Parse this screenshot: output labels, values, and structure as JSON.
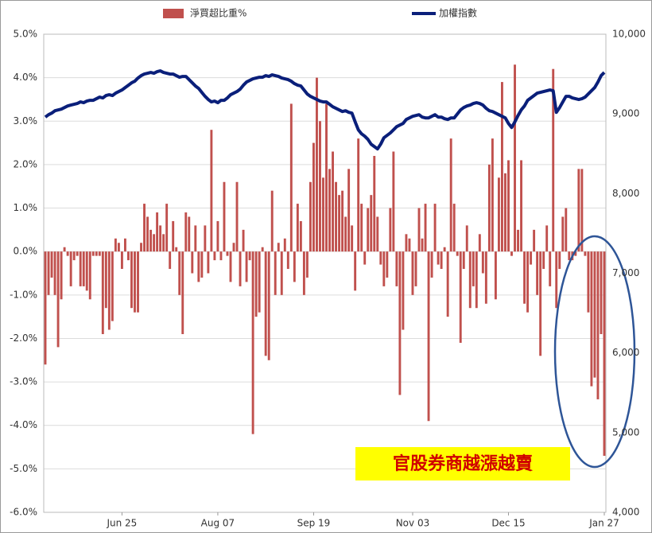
{
  "chart_data": {
    "type": "bar",
    "categories": [
      null,
      null,
      null,
      null,
      null,
      null,
      null,
      null,
      null,
      null,
      null,
      null,
      null,
      null,
      null,
      null,
      null,
      null,
      null,
      null,
      null,
      null,
      null,
      null,
      "Jun 25",
      null,
      null,
      null,
      null,
      null,
      null,
      null,
      null,
      null,
      null,
      null,
      null,
      null,
      null,
      null,
      null,
      null,
      null,
      null,
      null,
      null,
      null,
      null,
      null,
      null,
      null,
      null,
      null,
      null,
      "Aug 07",
      null,
      null,
      null,
      null,
      null,
      null,
      null,
      null,
      null,
      null,
      null,
      null,
      null,
      null,
      null,
      null,
      null,
      null,
      null,
      null,
      null,
      null,
      null,
      null,
      null,
      null,
      null,
      null,
      null,
      "Sep 19",
      null,
      null,
      null,
      null,
      null,
      null,
      null,
      null,
      null,
      null,
      null,
      null,
      null,
      null,
      null,
      null,
      null,
      null,
      null,
      null,
      null,
      null,
      null,
      null,
      null,
      null,
      null,
      null,
      null,
      null,
      "Nov 03",
      null,
      null,
      null,
      null,
      null,
      null,
      null,
      null,
      null,
      null,
      null,
      null,
      null,
      null,
      null,
      null,
      null,
      null,
      null,
      null,
      null,
      null,
      null,
      null,
      null,
      null,
      null,
      null,
      null,
      "Dec 15",
      null,
      null,
      null,
      null,
      null,
      null,
      null,
      null,
      null,
      null,
      null,
      null,
      null,
      null,
      null,
      null,
      null,
      null,
      null,
      null,
      null,
      null,
      null,
      null,
      null,
      null,
      null,
      null,
      null,
      "Jan 27"
    ],
    "series": [
      {
        "name": "淨買超比重%",
        "color": "#c0504d",
        "type": "bar",
        "values": [
          -2.6,
          -1.0,
          -0.6,
          -1.0,
          -2.2,
          -1.1,
          0.1,
          -0.1,
          -0.8,
          -0.2,
          -0.1,
          -0.8,
          -0.8,
          -0.9,
          -1.1,
          -0.1,
          -0.1,
          -0.1,
          -1.9,
          -1.3,
          -1.8,
          -1.6,
          0.3,
          0.2,
          -0.4,
          0.3,
          -0.2,
          -1.3,
          -1.4,
          -1.4,
          0.2,
          1.1,
          0.8,
          0.5,
          0.4,
          0.9,
          0.6,
          0.4,
          1.1,
          -0.4,
          0.7,
          0.1,
          -1.0,
          -1.9,
          0.9,
          0.8,
          -0.5,
          0.6,
          -0.7,
          -0.6,
          0.6,
          -0.5,
          2.8,
          -0.2,
          0.7,
          -0.2,
          1.6,
          -0.1,
          -0.7,
          0.2,
          1.6,
          -0.8,
          0.5,
          -0.7,
          -0.2,
          -4.2,
          -1.5,
          -1.4,
          0.1,
          -2.4,
          -2.5,
          1.4,
          -1.0,
          0.2,
          -1.0,
          0.3,
          -0.4,
          3.4,
          -0.7,
          1.1,
          0.7,
          -1.0,
          -0.6,
          1.6,
          2.5,
          4.0,
          3.0,
          1.7,
          3.4,
          1.9,
          2.3,
          1.6,
          1.3,
          1.4,
          0.8,
          1.9,
          0.6,
          -0.9,
          2.6,
          1.1,
          -0.3,
          1.0,
          1.3,
          2.2,
          0.8,
          -0.3,
          -0.8,
          -0.6,
          1.0,
          2.3,
          -0.8,
          -3.3,
          -1.8,
          0.4,
          0.3,
          -1.0,
          -0.8,
          1.0,
          0.3,
          1.1,
          -3.9,
          -0.6,
          1.1,
          -0.3,
          -0.4,
          0.1,
          -1.5,
          2.6,
          1.1,
          -0.1,
          -2.1,
          -0.4,
          0.6,
          -1.3,
          -0.8,
          -1.3,
          0.4,
          -0.5,
          -1.2,
          2.0,
          2.6,
          -1.1,
          1.7,
          3.9,
          1.8,
          2.1,
          -0.1,
          4.3,
          0.5,
          2.1,
          -1.2,
          -1.4,
          -0.3,
          0.5,
          -1.0,
          -2.4,
          -0.4,
          0.6,
          -0.8,
          4.2,
          -1.3,
          -0.4,
          0.8,
          1.0,
          -0.2,
          -0.2,
          -0.1,
          1.9,
          1.9,
          -0.1,
          -1.4,
          -3.1,
          -2.9,
          -3.4,
          -1.9,
          -4.7
        ]
      },
      {
        "name": "加權指數",
        "color": "#0a1f7a",
        "type": "line",
        "axis": "y2",
        "values": [
          8960,
          8990,
          9010,
          9040,
          9050,
          9060,
          9080,
          9100,
          9110,
          9120,
          9130,
          9150,
          9140,
          9160,
          9170,
          9170,
          9190,
          9210,
          9200,
          9230,
          9240,
          9230,
          9260,
          9280,
          9300,
          9330,
          9360,
          9390,
          9410,
          9450,
          9480,
          9500,
          9510,
          9520,
          9510,
          9530,
          9540,
          9520,
          9510,
          9500,
          9500,
          9480,
          9460,
          9470,
          9470,
          9430,
          9390,
          9350,
          9320,
          9270,
          9220,
          9180,
          9150,
          9160,
          9140,
          9170,
          9170,
          9200,
          9240,
          9260,
          9280,
          9310,
          9360,
          9400,
          9420,
          9440,
          9450,
          9460,
          9460,
          9480,
          9470,
          9490,
          9480,
          9470,
          9450,
          9440,
          9430,
          9410,
          9380,
          9360,
          9350,
          9300,
          9250,
          9220,
          9200,
          9180,
          9160,
          9150,
          9150,
          9120,
          9090,
          9070,
          9050,
          9030,
          9040,
          9020,
          9010,
          8900,
          8800,
          8750,
          8720,
          8680,
          8620,
          8590,
          8560,
          8620,
          8700,
          8730,
          8760,
          8800,
          8840,
          8860,
          8880,
          8930,
          8950,
          8970,
          8980,
          8990,
          8960,
          8950,
          8950,
          8970,
          8990,
          8960,
          8960,
          8940,
          8930,
          8950,
          8950,
          9000,
          9050,
          9080,
          9100,
          9110,
          9130,
          9140,
          9130,
          9110,
          9070,
          9040,
          9030,
          9010,
          8990,
          8970,
          8950,
          8880,
          8830,
          8900,
          8980,
          9050,
          9100,
          9170,
          9200,
          9230,
          9260,
          9270,
          9280,
          9290,
          9300,
          9290,
          9020,
          9080,
          9150,
          9220,
          9220,
          9200,
          9190,
          9180,
          9190,
          9210,
          9250,
          9290,
          9330,
          9400,
          9480,
          9520
        ]
      }
    ],
    "ylim": [
      -6,
      5
    ],
    "yticks": [
      {
        "value": -6,
        "label": "-6.0%"
      },
      {
        "value": -5,
        "label": "-5.0%"
      },
      {
        "value": -4,
        "label": "-4.0%"
      },
      {
        "value": -3,
        "label": "-3.0%"
      },
      {
        "value": -2,
        "label": "-2.0%"
      },
      {
        "value": -1,
        "label": "-1.0%"
      },
      {
        "value": 0,
        "label": "0.0%"
      },
      {
        "value": 1,
        "label": "1.0%"
      },
      {
        "value": 2,
        "label": "2.0%"
      },
      {
        "value": 3,
        "label": "3.0%"
      },
      {
        "value": 4,
        "label": "4.0%"
      },
      {
        "value": 5,
        "label": "5.0%"
      }
    ],
    "y2lim": [
      4000,
      10000
    ],
    "y2ticks": [
      {
        "value": 4000,
        "label": "4,000"
      },
      {
        "value": 5000,
        "label": "5,000"
      },
      {
        "value": 6000,
        "label": "6,000"
      },
      {
        "value": 7000,
        "label": "7,000"
      },
      {
        "value": 8000,
        "label": "8,000"
      },
      {
        "value": 9000,
        "label": "9,000"
      },
      {
        "value": 10000,
        "label": "10,000"
      }
    ],
    "grid": true,
    "legend": "top",
    "annotation": "官股券商越漲越賣"
  }
}
